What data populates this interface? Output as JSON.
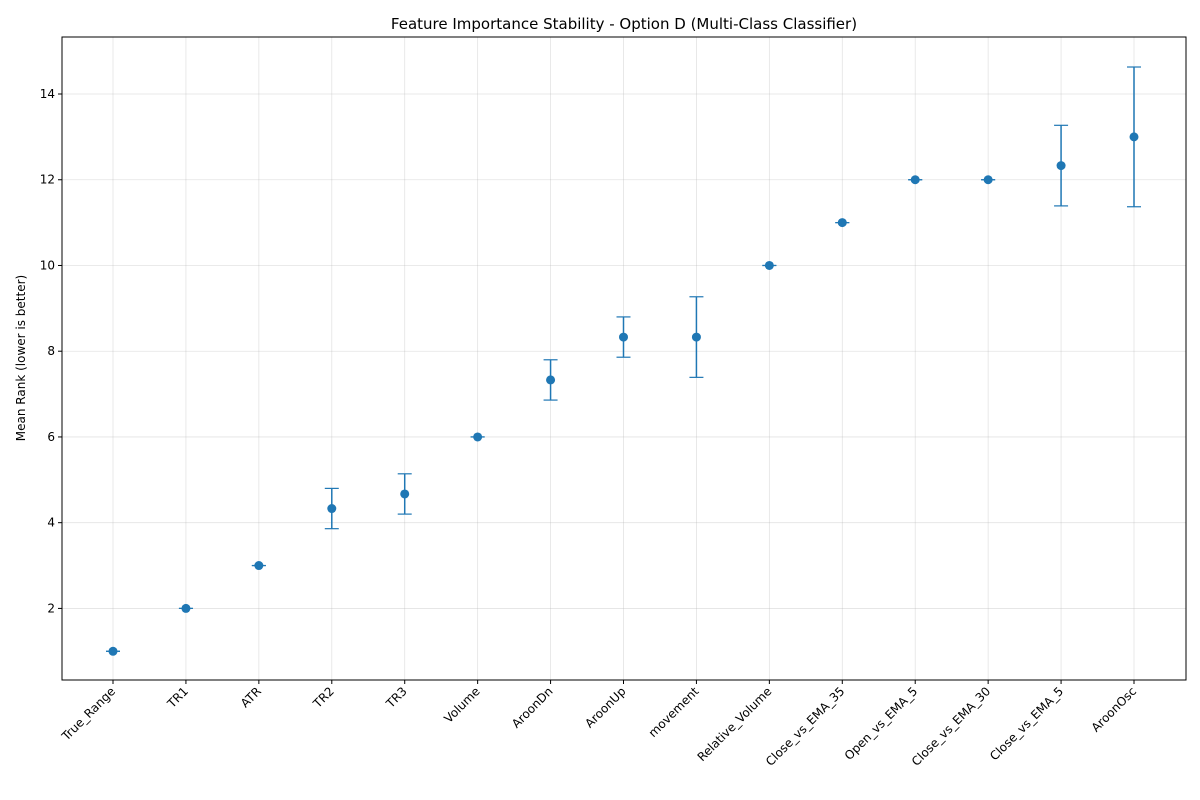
{
  "chart_data": {
    "type": "scatter",
    "title": "Feature Importance Stability - Option D (Multi-Class Classifier)",
    "xlabel": "",
    "ylabel": "Mean Rank (lower is better)",
    "ylim": [
      0.33,
      15.33
    ],
    "yticks": [
      2,
      4,
      6,
      8,
      10,
      12,
      14
    ],
    "grid": true,
    "categories": [
      "True_Range",
      "TR1",
      "ATR",
      "TR2",
      "TR3",
      "Volume",
      "AroonDn",
      "AroonUp",
      "movement",
      "Relative_Volume",
      "Close_vs_EMA_35",
      "Open_vs_EMA_5",
      "Close_vs_EMA_30",
      "Close_vs_EMA_5",
      "AroonOsc"
    ],
    "values": [
      1.0,
      2.0,
      3.0,
      4.33,
      4.67,
      6.0,
      7.33,
      8.33,
      8.33,
      10.0,
      11.0,
      12.0,
      12.0,
      12.33,
      13.0
    ],
    "errors": [
      0,
      0,
      0,
      0.47,
      0.47,
      0,
      0.47,
      0.47,
      0.94,
      0,
      0,
      0,
      0,
      0.94,
      1.63
    ],
    "color": "#1f77b4"
  }
}
